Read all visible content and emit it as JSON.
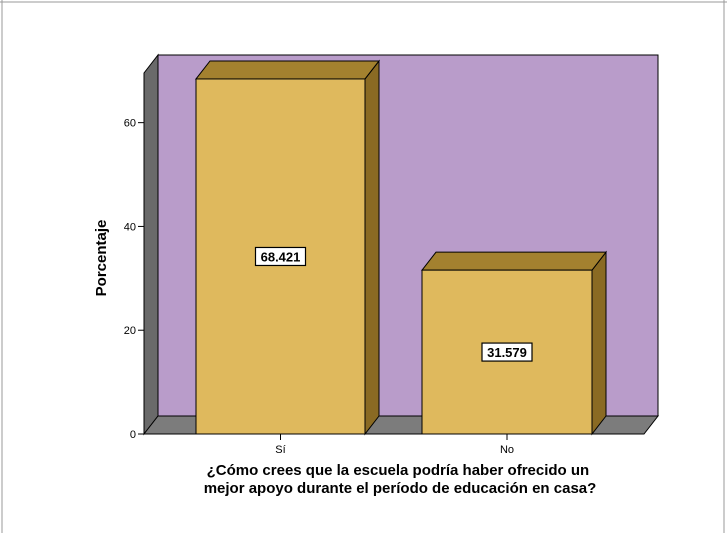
{
  "chart_data": {
    "type": "bar",
    "categories": [
      "Sí",
      "No"
    ],
    "values": [
      68.421,
      31.579
    ],
    "data_labels": [
      "68.421",
      "31.579"
    ],
    "title": "",
    "xlabel": "¿Cómo crees que la escuela podría haber ofrecido un mejor apoyo durante el período de educación en casa?",
    "xlabel_lines": [
      "¿Cómo crees que la escuela podría haber ofrecido un",
      "mejor apoyo durante el período de educación en casa?"
    ],
    "ylabel": "Porcentaje",
    "ylim": [
      0,
      74
    ],
    "yticks": [
      0,
      20,
      40,
      60
    ],
    "ytick_labels": [
      "0",
      "20",
      "40",
      "60"
    ],
    "style": "3d",
    "grid": false,
    "legend": "none",
    "colors": {
      "plot_background": "#b99cca",
      "bar_face": "#dfb95d",
      "bar_side": "#8a6a23",
      "bar_top": "#a3812f",
      "floor": "#7c7c7c",
      "left_wall": "#6a6a6a",
      "frame": "#9a9a9a",
      "label_box": "#ffffff",
      "text": "#000000"
    }
  }
}
